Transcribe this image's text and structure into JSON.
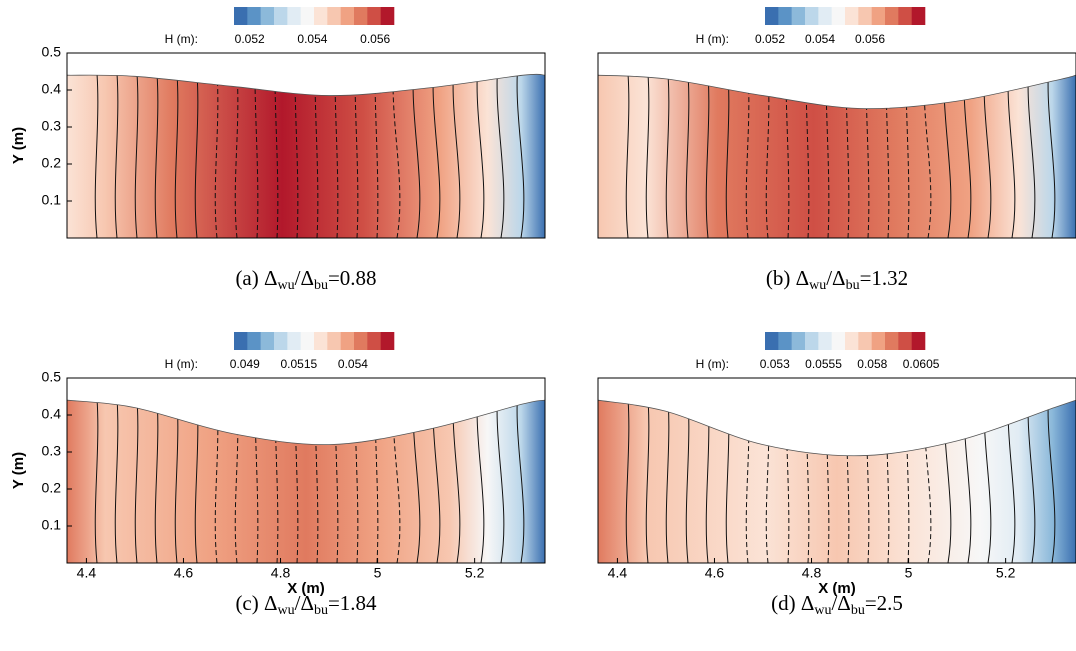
{
  "chart_data": [
    {
      "type": "contour",
      "caption": [
        "(a) Δ",
        "wu",
        "/Δ",
        "bu",
        "=0.88"
      ],
      "colorbar_label": "H (m):",
      "clim": [
        0.0515,
        0.0566
      ],
      "colorbar_ticks": [
        0.052,
        0.054,
        0.056
      ],
      "xlim": [
        4.36,
        5.345
      ],
      "ylim": [
        0,
        0.5
      ],
      "yticks": [
        0.1,
        0.2,
        0.3,
        0.4,
        0.5
      ],
      "ylabel": "Y (m)",
      "surface": {
        "x": [
          4.36,
          4.5,
          4.7,
          4.9,
          5.1,
          5.3,
          5.345
        ],
        "y": [
          0.44,
          0.437,
          0.41,
          0.385,
          0.405,
          0.44,
          0.44
        ]
      }
    },
    {
      "type": "contour",
      "caption": [
        "(b) Δ",
        "wu",
        "/Δ",
        "bu",
        "=1.32"
      ],
      "colorbar_label": "H (m):",
      "clim": [
        0.0518,
        0.0582
      ],
      "colorbar_ticks": [
        0.052,
        0.054,
        0.056
      ],
      "xlim": [
        4.36,
        5.345
      ],
      "ylim": [
        0,
        0.5
      ],
      "surface": {
        "x": [
          4.36,
          4.5,
          4.7,
          4.9,
          5.1,
          5.3,
          5.345
        ],
        "y": [
          0.44,
          0.43,
          0.385,
          0.35,
          0.37,
          0.425,
          0.44
        ]
      }
    },
    {
      "type": "contour",
      "caption": [
        "(c) Δ",
        "wu",
        "/Δ",
        "bu",
        "=1.84"
      ],
      "colorbar_label": "H (m):",
      "clim": [
        0.0485,
        0.0559
      ],
      "colorbar_ticks": [
        0.049,
        0.0515,
        0.054
      ],
      "xlim": [
        4.36,
        5.345
      ],
      "ylim": [
        0,
        0.5
      ],
      "xticks": [
        4.4,
        4.6,
        4.8,
        5,
        5.2
      ],
      "xlabel": "X (m)",
      "yticks": [
        0.1,
        0.2,
        0.3,
        0.4,
        0.5
      ],
      "ylabel": "Y (m)",
      "surface": {
        "x": [
          4.36,
          4.5,
          4.7,
          4.9,
          5.1,
          5.3,
          5.345
        ],
        "y": [
          0.44,
          0.42,
          0.35,
          0.32,
          0.36,
          0.43,
          0.44
        ]
      }
    },
    {
      "type": "contour",
      "caption": [
        "(d) Δ",
        "wu",
        "/Δ",
        "bu",
        "=2.5"
      ],
      "colorbar_label": "H (m):",
      "clim": [
        0.0525,
        0.0607
      ],
      "colorbar_ticks": [
        0.053,
        0.0555,
        0.058,
        0.0605
      ],
      "xlim": [
        4.36,
        5.345
      ],
      "ylim": [
        0,
        0.5
      ],
      "xticks": [
        4.4,
        4.6,
        4.8,
        5,
        5.2
      ],
      "xlabel": "X (m)",
      "surface": {
        "x": [
          4.36,
          4.5,
          4.7,
          4.9,
          5.1,
          5.3,
          5.345
        ],
        "y": [
          0.44,
          0.41,
          0.32,
          0.29,
          0.33,
          0.42,
          0.44
        ]
      }
    }
  ],
  "colormap": [
    "#3a6fb0",
    "#5b93c6",
    "#8cb9da",
    "#bcd7ea",
    "#e1ecf4",
    "#f7f7f7",
    "#fbe3d6",
    "#f7c7b0",
    "#f0a283",
    "#e07a5f",
    "#cf4f45",
    "#b2182b"
  ]
}
